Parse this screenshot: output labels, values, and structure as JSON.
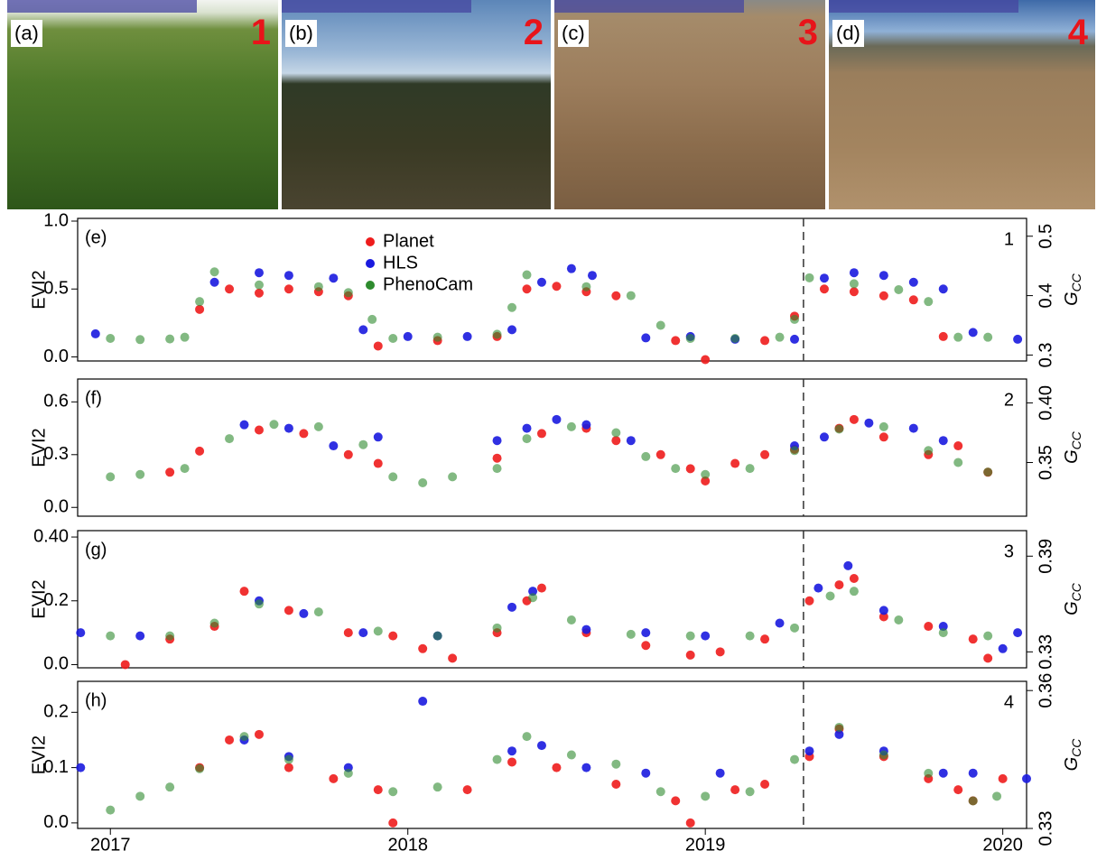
{
  "photos": [
    {
      "label": "(a)",
      "number": "1"
    },
    {
      "label": "(b)",
      "number": "2"
    },
    {
      "label": "(c)",
      "number": "3"
    },
    {
      "label": "(d)",
      "number": "4"
    }
  ],
  "chart_data": [
    {
      "type": "scatter",
      "panel_label": "(e)",
      "site": "1",
      "y_label": "EVI2",
      "y2_label": "G",
      "y2_label_sub": "CC",
      "xlim": [
        2016.89,
        2020.08
      ],
      "ylim": [
        -0.03,
        1.02
      ],
      "y2lim": [
        0.29,
        0.53
      ],
      "yticks": [
        {
          "value": 0,
          "label": "0.0"
        },
        0.5,
        {
          "value": 1,
          "label": "1.0"
        }
      ],
      "y2ticks": [
        0.3,
        0.4,
        0.5
      ],
      "vline": 2019.33,
      "legend": true,
      "series": [
        {
          "name": "Planet",
          "color": "#ee1c1c",
          "x": [
            2017.3,
            2017.4,
            2017.5,
            2017.6,
            2017.7,
            2017.8,
            2017.9,
            2018.1,
            2018.3,
            2018.4,
            2018.5,
            2018.6,
            2018.7,
            2018.9,
            2019.0,
            2019.2,
            2019.3,
            2019.4,
            2019.5,
            2019.6,
            2019.7,
            2019.8
          ],
          "values": [
            0.35,
            0.5,
            0.47,
            0.5,
            0.48,
            0.45,
            0.08,
            0.12,
            0.15,
            0.5,
            0.52,
            0.48,
            0.45,
            0.12,
            -0.02,
            0.12,
            0.3,
            0.5,
            0.48,
            0.45,
            0.42,
            0.15
          ]
        },
        {
          "name": "HLS",
          "color": "#1a1adf",
          "x": [
            2016.95,
            2017.35,
            2017.5,
            2017.6,
            2017.75,
            2017.85,
            2018.0,
            2018.2,
            2018.35,
            2018.45,
            2018.55,
            2018.62,
            2018.8,
            2018.95,
            2019.1,
            2019.3,
            2019.4,
            2019.5,
            2019.6,
            2019.7,
            2019.8,
            2019.9,
            2020.05
          ],
          "values": [
            0.17,
            0.55,
            0.62,
            0.6,
            0.58,
            0.2,
            0.15,
            0.15,
            0.2,
            0.55,
            0.65,
            0.6,
            0.14,
            0.15,
            0.13,
            0.13,
            0.58,
            0.62,
            0.6,
            0.55,
            0.5,
            0.18,
            0.13
          ]
        },
        {
          "name": "PhenoCam",
          "color": "#2e8b2e",
          "axis": "y2",
          "x": [
            2017.0,
            2017.1,
            2017.2,
            2017.25,
            2017.3,
            2017.35,
            2017.5,
            2017.7,
            2017.8,
            2017.88,
            2017.95,
            2018.1,
            2018.3,
            2018.35,
            2018.4,
            2018.6,
            2018.75,
            2018.85,
            2018.95,
            2019.1,
            2019.25,
            2019.3,
            2019.35,
            2019.5,
            2019.65,
            2019.75,
            2019.85,
            2019.95
          ],
          "values": [
            0.328,
            0.326,
            0.327,
            0.33,
            0.39,
            0.44,
            0.418,
            0.415,
            0.405,
            0.36,
            0.328,
            0.33,
            0.335,
            0.38,
            0.435,
            0.415,
            0.4,
            0.35,
            0.328,
            0.328,
            0.33,
            0.36,
            0.43,
            0.42,
            0.41,
            0.39,
            0.33,
            0.33
          ]
        }
      ]
    },
    {
      "type": "scatter",
      "panel_label": "(f)",
      "site": "2",
      "y_label": "EVI2",
      "y2_label": "G",
      "y2_label_sub": "CC",
      "xlim": [
        2016.89,
        2020.08
      ],
      "ylim": [
        -0.05,
        0.73
      ],
      "y2lim": [
        0.305,
        0.42
      ],
      "yticks": [
        {
          "value": 0,
          "label": "0.0"
        },
        0.3,
        0.6
      ],
      "y2ticks": [
        0.35,
        {
          "value": 0.4,
          "label": "0.40"
        }
      ],
      "vline": 2019.33,
      "series": [
        {
          "name": "Planet",
          "color": "#ee1c1c",
          "x": [
            2017.2,
            2017.3,
            2017.5,
            2017.65,
            2017.8,
            2017.9,
            2018.3,
            2018.45,
            2018.6,
            2018.7,
            2018.85,
            2018.95,
            2019.0,
            2019.1,
            2019.2,
            2019.3,
            2019.45,
            2019.5,
            2019.6,
            2019.75,
            2019.85,
            2019.95
          ],
          "values": [
            0.2,
            0.32,
            0.44,
            0.42,
            0.3,
            0.25,
            0.28,
            0.42,
            0.45,
            0.38,
            0.3,
            0.22,
            0.15,
            0.25,
            0.3,
            0.33,
            0.45,
            0.5,
            0.4,
            0.3,
            0.35,
            0.2
          ]
        },
        {
          "name": "HLS",
          "color": "#1a1adf",
          "x": [
            2017.45,
            2017.6,
            2017.75,
            2017.9,
            2018.3,
            2018.4,
            2018.5,
            2018.6,
            2018.75,
            2019.3,
            2019.4,
            2019.55,
            2019.7,
            2019.8
          ],
          "values": [
            0.47,
            0.45,
            0.35,
            0.4,
            0.38,
            0.45,
            0.5,
            0.47,
            0.38,
            0.35,
            0.4,
            0.48,
            0.45,
            0.38
          ]
        },
        {
          "name": "PhenoCam",
          "color": "#2e8b2e",
          "axis": "y2",
          "x": [
            2017.0,
            2017.1,
            2017.25,
            2017.4,
            2017.55,
            2017.7,
            2017.85,
            2017.95,
            2018.05,
            2018.15,
            2018.3,
            2018.4,
            2018.55,
            2018.7,
            2018.8,
            2018.9,
            2019.0,
            2019.15,
            2019.3,
            2019.45,
            2019.6,
            2019.75,
            2019.85,
            2019.95
          ],
          "values": [
            0.338,
            0.34,
            0.345,
            0.37,
            0.382,
            0.38,
            0.365,
            0.338,
            0.333,
            0.338,
            0.345,
            0.37,
            0.38,
            0.375,
            0.355,
            0.345,
            0.34,
            0.345,
            0.36,
            0.378,
            0.38,
            0.36,
            0.35,
            0.342
          ]
        }
      ]
    },
    {
      "type": "scatter",
      "panel_label": "(g)",
      "site": "3",
      "y_label": "EVI2",
      "y2_label": "G",
      "y2_label_sub": "CC",
      "xlim": [
        2016.89,
        2020.08
      ],
      "ylim": [
        -0.01,
        0.42
      ],
      "y2lim": [
        0.32,
        0.406
      ],
      "yticks": [
        {
          "value": 0,
          "label": "0.0"
        },
        0.2,
        {
          "value": 0.4,
          "label": "0.40"
        }
      ],
      "y2ticks": [
        0.33,
        0.39
      ],
      "vline": 2019.33,
      "series": [
        {
          "name": "Planet",
          "color": "#ee1c1c",
          "x": [
            2017.05,
            2017.2,
            2017.35,
            2017.45,
            2017.6,
            2017.8,
            2017.95,
            2018.05,
            2018.15,
            2018.3,
            2018.4,
            2018.45,
            2018.6,
            2018.8,
            2018.95,
            2019.05,
            2019.2,
            2019.35,
            2019.45,
            2019.5,
            2019.6,
            2019.75,
            2019.9,
            2019.95
          ],
          "values": [
            0.0,
            0.08,
            0.12,
            0.23,
            0.17,
            0.1,
            0.09,
            0.05,
            0.02,
            0.1,
            0.2,
            0.24,
            0.1,
            0.06,
            0.03,
            0.04,
            0.08,
            0.2,
            0.25,
            0.27,
            0.15,
            0.12,
            0.08,
            0.02
          ]
        },
        {
          "name": "HLS",
          "color": "#1a1adf",
          "x": [
            2016.9,
            2017.1,
            2017.5,
            2017.65,
            2017.85,
            2018.1,
            2018.35,
            2018.42,
            2018.6,
            2018.8,
            2019.0,
            2019.25,
            2019.38,
            2019.48,
            2019.6,
            2019.8,
            2020.0,
            2020.05
          ],
          "values": [
            0.1,
            0.09,
            0.2,
            0.16,
            0.1,
            0.09,
            0.18,
            0.23,
            0.11,
            0.1,
            0.09,
            0.13,
            0.24,
            0.31,
            0.17,
            0.12,
            0.05,
            0.1
          ]
        },
        {
          "name": "PhenoCam",
          "color": "#2e8b2e",
          "axis": "y2",
          "x": [
            2017.0,
            2017.2,
            2017.35,
            2017.5,
            2017.7,
            2017.9,
            2018.1,
            2018.3,
            2018.42,
            2018.55,
            2018.75,
            2018.95,
            2019.15,
            2019.3,
            2019.42,
            2019.5,
            2019.65,
            2019.8,
            2019.95
          ],
          "values": [
            0.34,
            0.34,
            0.348,
            0.36,
            0.355,
            0.343,
            0.34,
            0.345,
            0.364,
            0.35,
            0.341,
            0.34,
            0.34,
            0.345,
            0.365,
            0.368,
            0.35,
            0.342,
            0.34
          ]
        }
      ]
    },
    {
      "type": "scatter",
      "panel_label": "(h)",
      "site": "4",
      "y_label": "EVI2",
      "y2_label": "G",
      "y2_label_sub": "CC",
      "xlim": [
        2016.89,
        2020.08
      ],
      "ylim": [
        -0.01,
        0.256
      ],
      "y2lim": [
        0.33,
        0.362
      ],
      "xticks": [
        2017,
        2018,
        2019,
        2020
      ],
      "yticks": [
        {
          "value": 0,
          "label": "0.0"
        },
        0.1,
        0.2
      ],
      "y2ticks": [
        0.33,
        0.36
      ],
      "vline": 2019.33,
      "series": [
        {
          "name": "Planet",
          "color": "#ee1c1c",
          "x": [
            2017.3,
            2017.4,
            2017.5,
            2017.6,
            2017.75,
            2017.9,
            2017.95,
            2018.2,
            2018.35,
            2018.5,
            2018.7,
            2018.9,
            2018.95,
            2019.1,
            2019.2,
            2019.35,
            2019.45,
            2019.6,
            2019.75,
            2019.85,
            2019.9,
            2020.0
          ],
          "values": [
            0.1,
            0.15,
            0.16,
            0.1,
            0.08,
            0.06,
            0.0,
            0.06,
            0.11,
            0.1,
            0.07,
            0.04,
            0.0,
            0.06,
            0.07,
            0.12,
            0.17,
            0.12,
            0.08,
            0.06,
            0.04,
            0.08
          ]
        },
        {
          "name": "HLS",
          "color": "#1a1adf",
          "x": [
            2016.9,
            2017.45,
            2017.6,
            2017.8,
            2018.05,
            2018.35,
            2018.45,
            2018.6,
            2018.8,
            2019.05,
            2019.35,
            2019.45,
            2019.6,
            2019.8,
            2019.9,
            2020.08
          ],
          "values": [
            0.1,
            0.15,
            0.12,
            0.1,
            0.22,
            0.13,
            0.14,
            0.1,
            0.09,
            0.09,
            0.13,
            0.16,
            0.13,
            0.09,
            0.09,
            0.08
          ]
        },
        {
          "name": "PhenoCam",
          "color": "#2e8b2e",
          "axis": "y2",
          "x": [
            2017.0,
            2017.1,
            2017.2,
            2017.3,
            2017.45,
            2017.6,
            2017.8,
            2017.95,
            2018.1,
            2018.3,
            2018.4,
            2018.55,
            2018.7,
            2018.85,
            2019.0,
            2019.15,
            2019.3,
            2019.45,
            2019.6,
            2019.75,
            2019.9,
            2019.98
          ],
          "values": [
            0.334,
            0.337,
            0.339,
            0.343,
            0.35,
            0.345,
            0.342,
            0.338,
            0.339,
            0.345,
            0.35,
            0.346,
            0.344,
            0.338,
            0.337,
            0.338,
            0.345,
            0.352,
            0.346,
            0.342,
            0.336,
            0.337
          ]
        }
      ]
    }
  ]
}
